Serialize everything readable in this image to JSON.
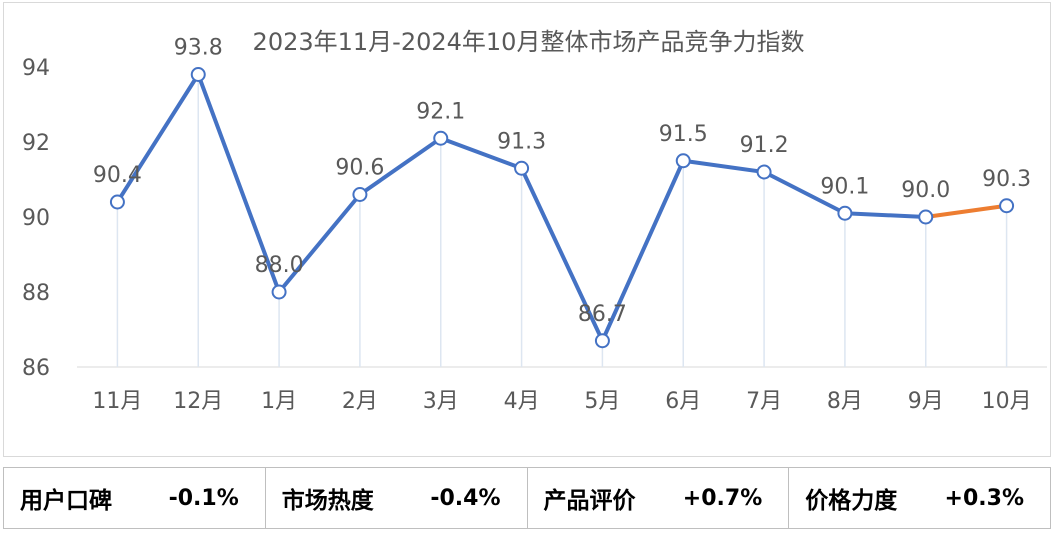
{
  "chart_data": {
    "type": "line",
    "title": "2023年11月-2024年10月整体市场产品竞争力指数",
    "categories": [
      "11月",
      "12月",
      "1月",
      "2月",
      "3月",
      "4月",
      "5月",
      "6月",
      "7月",
      "8月",
      "9月",
      "10月"
    ],
    "values": [
      90.4,
      93.8,
      88.0,
      90.6,
      92.1,
      91.3,
      86.7,
      91.5,
      91.2,
      90.1,
      90.0,
      90.3
    ],
    "data_labels": [
      "90.4",
      "93.8",
      "88.0",
      "90.6",
      "92.1",
      "91.3",
      "86.7",
      "91.5",
      "91.2",
      "90.1",
      "90.0",
      "90.3"
    ],
    "ylim": [
      86,
      94
    ],
    "yticks": [
      "86",
      "88",
      "90",
      "92",
      "94"
    ],
    "grid": false,
    "colors": {
      "line": "#4472c4",
      "last_segment": "#ed7d31",
      "drop_line": "#dde6f1",
      "text": "#595959"
    }
  },
  "metrics": [
    {
      "label": "用户口碑",
      "value": "-0.1%"
    },
    {
      "label": "市场热度",
      "value": "-0.4%"
    },
    {
      "label": "产品评价",
      "value": "+0.7%"
    },
    {
      "label": "价格力度",
      "value": "+0.3%"
    }
  ]
}
